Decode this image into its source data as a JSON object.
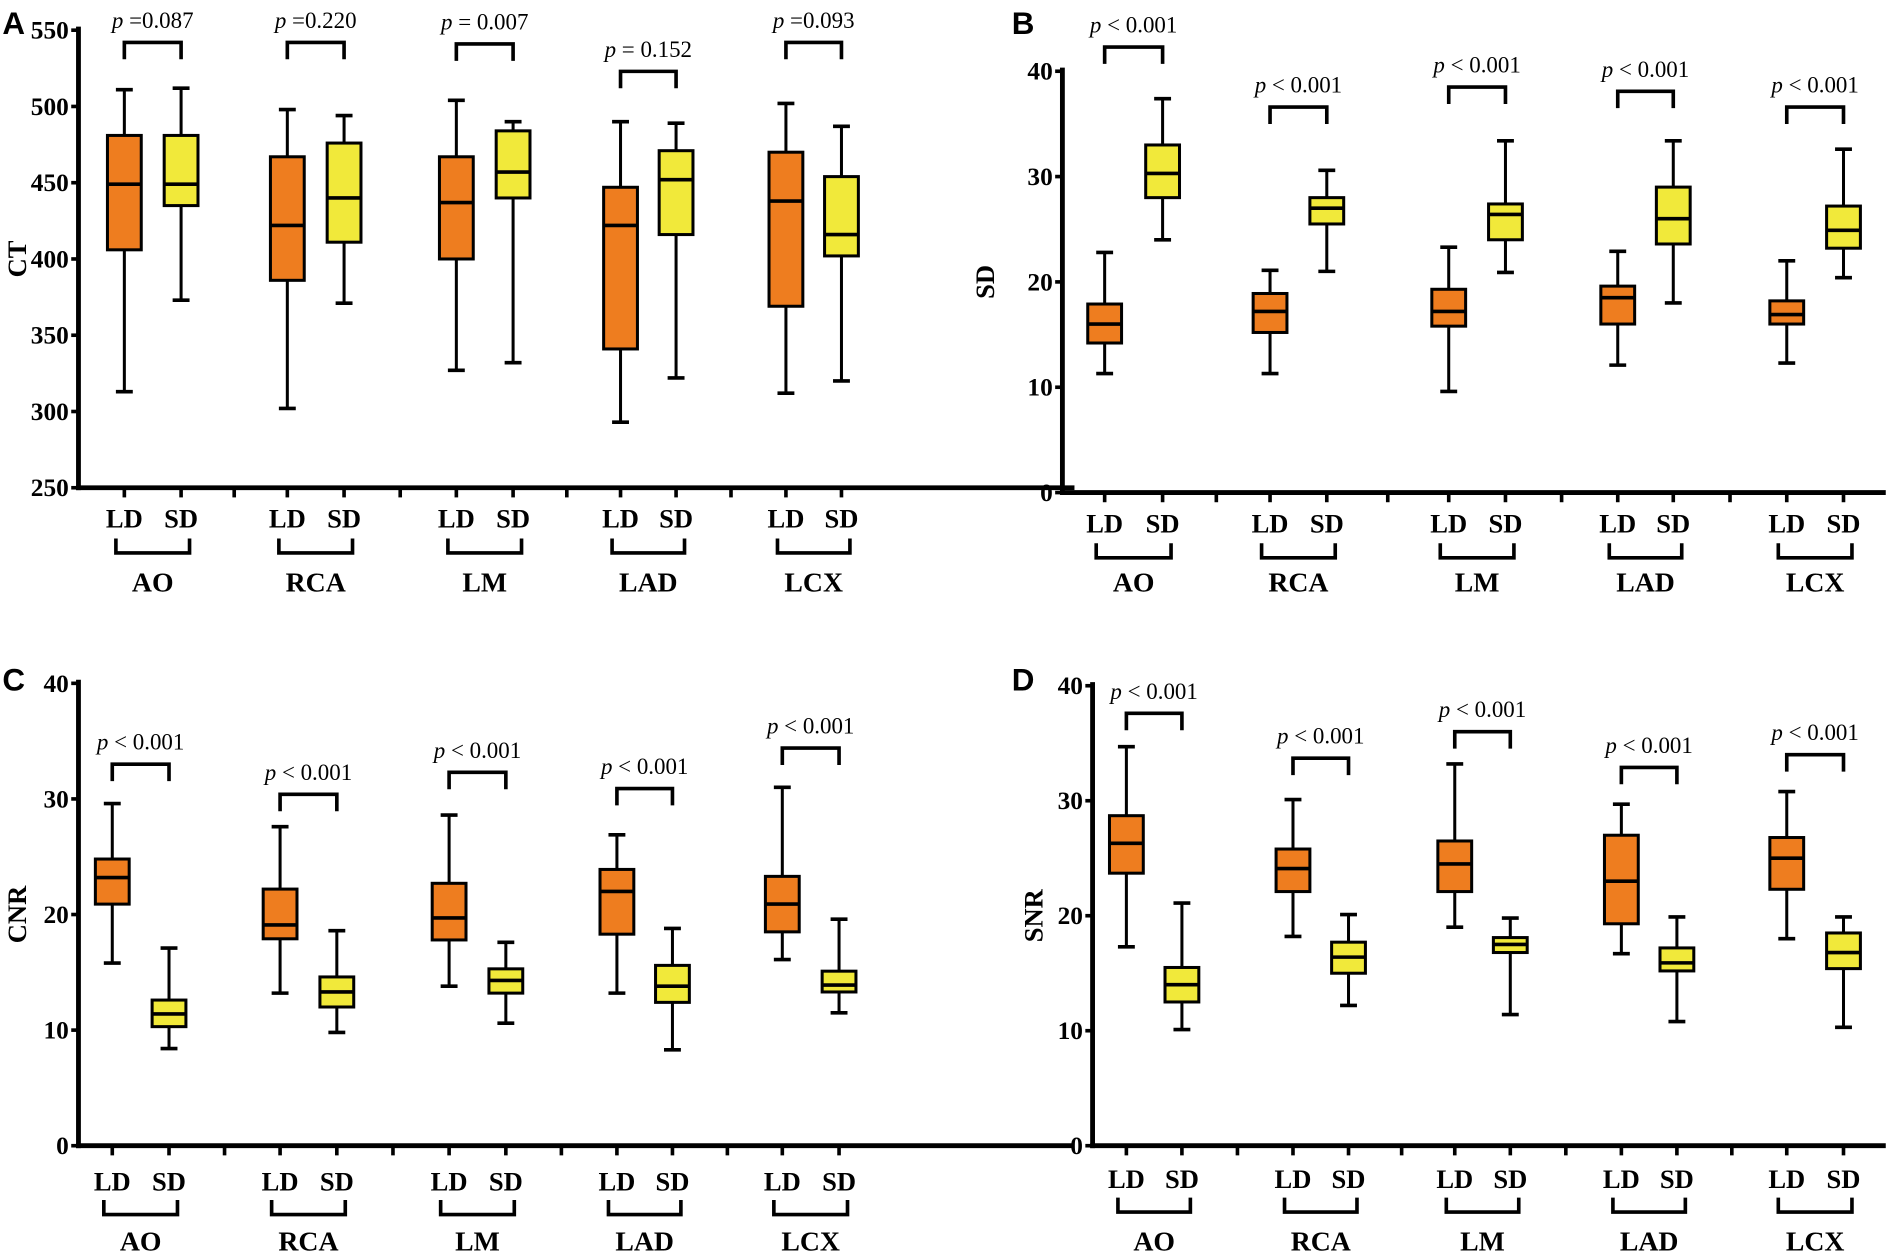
{
  "colors": {
    "ld": "#ee7d1f",
    "sd": "#f1e93a",
    "stroke": "#000000"
  },
  "chart_data": [
    {
      "panel": "A",
      "type": "box",
      "ylabel": "CT",
      "ylim": [
        250,
        550
      ],
      "yticks": [
        250,
        300,
        350,
        400,
        450,
        500,
        550
      ],
      "series_labels": [
        "LD",
        "SD"
      ],
      "groups": [
        {
          "name": "AO",
          "p": "=0.087",
          "bracket_y": 542,
          "LD": [
            313,
            406,
            449,
            481,
            511
          ],
          "SD": [
            373,
            435,
            449,
            481,
            512
          ]
        },
        {
          "name": "RCA",
          "p": "=0.220",
          "bracket_y": 542,
          "LD": [
            302,
            386,
            422,
            467,
            498
          ],
          "SD": [
            371,
            411,
            440,
            476,
            494
          ]
        },
        {
          "name": "LM",
          "p": "= 0.007",
          "bracket_y": 541,
          "LD": [
            327,
            400,
            437,
            467,
            504
          ],
          "SD": [
            332,
            440,
            457,
            484,
            490
          ]
        },
        {
          "name": "LAD",
          "p": "= 0.152",
          "bracket_y": 523,
          "LD": [
            293,
            341,
            422,
            447,
            490
          ],
          "SD": [
            322,
            416,
            452,
            471,
            489
          ]
        },
        {
          "name": "LCX",
          "p": "=0.093",
          "bracket_y": 542,
          "LD": [
            312,
            369,
            438,
            470,
            502
          ],
          "SD": [
            320,
            402,
            416,
            454,
            487
          ]
        }
      ]
    },
    {
      "panel": "B",
      "type": "box",
      "ylabel": "SD",
      "ylim": [
        0,
        40
      ],
      "yticks": [
        0,
        10,
        20,
        30,
        40
      ],
      "series_labels": [
        "LD",
        "SD"
      ],
      "groups": [
        {
          "name": "AO",
          "p": "< 0.001",
          "bracket_y": 42.3,
          "LD": [
            11.3,
            14.2,
            16.0,
            17.9,
            22.8
          ],
          "SD": [
            24.0,
            28.0,
            30.3,
            33.0,
            37.4
          ]
        },
        {
          "name": "RCA",
          "p": "< 0.001",
          "bracket_y": 36.6,
          "LD": [
            11.3,
            15.2,
            17.2,
            18.9,
            21.1
          ],
          "SD": [
            21.0,
            25.5,
            27.0,
            28.0,
            30.6
          ]
        },
        {
          "name": "LM",
          "p": "< 0.001",
          "bracket_y": 38.5,
          "LD": [
            9.6,
            15.8,
            17.2,
            19.3,
            23.3
          ],
          "SD": [
            20.9,
            24.0,
            26.4,
            27.4,
            33.4
          ]
        },
        {
          "name": "LAD",
          "p": "< 0.001",
          "bracket_y": 38.1,
          "LD": [
            12.1,
            16.0,
            18.5,
            19.6,
            22.9
          ],
          "SD": [
            18.0,
            23.6,
            26.0,
            29.0,
            33.4
          ]
        },
        {
          "name": "LCX",
          "p": "< 0.001",
          "bracket_y": 36.6,
          "LD": [
            12.3,
            16.0,
            16.9,
            18.2,
            22.0
          ],
          "SD": [
            20.4,
            23.2,
            24.9,
            27.2,
            32.6
          ]
        }
      ]
    },
    {
      "panel": "C",
      "type": "box",
      "ylabel": "CNR",
      "ylim": [
        0,
        40
      ],
      "yticks": [
        0,
        10,
        20,
        30,
        40
      ],
      "series_labels": [
        "LD",
        "SD"
      ],
      "groups": [
        {
          "name": "AO",
          "p": "< 0.001",
          "bracket_y": 33.0,
          "LD": [
            15.8,
            20.9,
            23.2,
            24.8,
            29.6
          ],
          "SD": [
            8.4,
            10.3,
            11.4,
            12.6,
            17.1
          ]
        },
        {
          "name": "RCA",
          "p": "< 0.001",
          "bracket_y": 30.4,
          "LD": [
            13.2,
            17.9,
            19.1,
            22.2,
            27.6
          ],
          "SD": [
            9.8,
            12.0,
            13.3,
            14.6,
            18.6
          ]
        },
        {
          "name": "LM",
          "p": "< 0.001",
          "bracket_y": 32.3,
          "LD": [
            13.8,
            17.8,
            19.7,
            22.7,
            28.6
          ],
          "SD": [
            10.6,
            13.2,
            14.3,
            15.3,
            17.6
          ]
        },
        {
          "name": "LAD",
          "p": "< 0.001",
          "bracket_y": 30.9,
          "LD": [
            13.2,
            18.3,
            22.0,
            23.9,
            26.9
          ],
          "SD": [
            8.3,
            12.4,
            13.8,
            15.6,
            18.8
          ]
        },
        {
          "name": "LCX",
          "p": "< 0.001",
          "bracket_y": 34.4,
          "LD": [
            16.1,
            18.5,
            20.9,
            23.3,
            31.0
          ],
          "SD": [
            11.5,
            13.3,
            13.9,
            15.1,
            19.6
          ]
        }
      ]
    },
    {
      "panel": "D",
      "type": "box",
      "ylabel": "SNR",
      "ylim": [
        0,
        40
      ],
      "yticks": [
        0,
        10,
        20,
        30,
        40
      ],
      "series_labels": [
        "LD",
        "SD"
      ],
      "groups": [
        {
          "name": "AO",
          "p": "< 0.001",
          "bracket_y": 37.6,
          "LD": [
            17.3,
            23.7,
            26.3,
            28.7,
            34.7
          ],
          "SD": [
            10.1,
            12.5,
            14.0,
            15.5,
            21.1
          ]
        },
        {
          "name": "RCA",
          "p": "< 0.001",
          "bracket_y": 33.7,
          "LD": [
            18.2,
            22.1,
            24.1,
            25.8,
            30.1
          ],
          "SD": [
            12.2,
            15.0,
            16.4,
            17.7,
            20.1
          ]
        },
        {
          "name": "LM",
          "p": "< 0.001",
          "bracket_y": 36.0,
          "LD": [
            19.0,
            22.1,
            24.5,
            26.5,
            33.2
          ],
          "SD": [
            11.4,
            16.8,
            17.5,
            18.1,
            19.8
          ]
        },
        {
          "name": "LAD",
          "p": "< 0.001",
          "bracket_y": 32.9,
          "LD": [
            16.7,
            19.3,
            23.0,
            27.0,
            29.7
          ],
          "SD": [
            10.8,
            15.2,
            15.9,
            17.2,
            19.9
          ]
        },
        {
          "name": "LCX",
          "p": "< 0.001",
          "bracket_y": 34.0,
          "LD": [
            18.0,
            22.3,
            25.0,
            26.8,
            30.8
          ],
          "SD": [
            10.3,
            15.4,
            16.8,
            18.5,
            19.9
          ]
        }
      ]
    }
  ],
  "p_symbol": "p"
}
